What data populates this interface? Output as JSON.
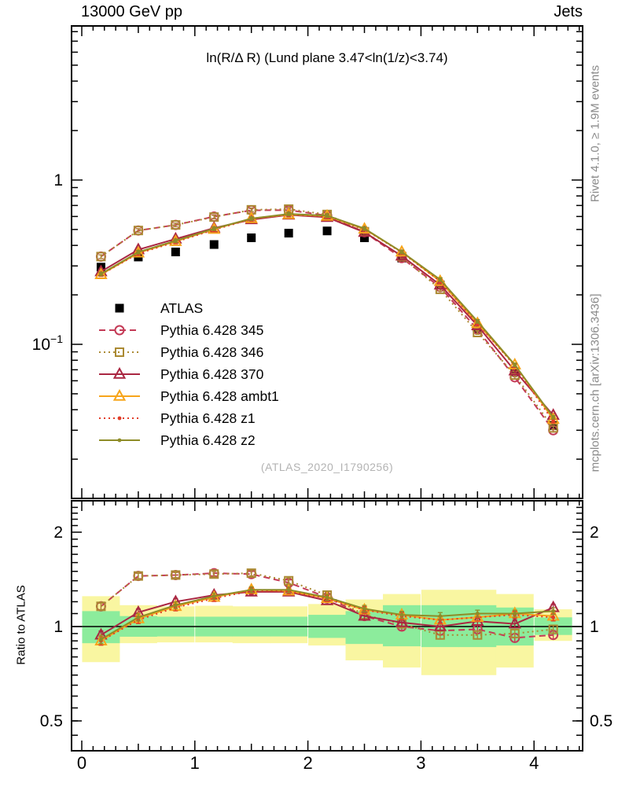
{
  "header": {
    "left": "13000 GeV pp",
    "right": "Jets"
  },
  "side_notes": {
    "top": "Rivet 4.1.0, ≥ 1.9M events",
    "bottom": "mcplots.cern.ch [arXiv:1306.3436]"
  },
  "watermark": "(ATLAS_2020_I1790256)",
  "chart_data": {
    "type": "line",
    "title": "ln(R/Δ R) (Lund plane 3.47<ln(1/z)<3.74)",
    "ratio_axis_label": "Ratio to ATLAS",
    "xlim": [
      -0.09,
      4.43
    ],
    "main_ylog": true,
    "main_ylim": [
      0.0115,
      8.67
    ],
    "ratio_ylog": true,
    "ratio_ylim": [
      0.4,
      2.52
    ],
    "x_bin_width": 0.3333,
    "x_ticks": [
      0,
      1,
      2,
      3,
      4
    ],
    "main_yticks": [
      {
        "v": 1,
        "base": "1",
        "exp": ""
      },
      {
        "v": 0.1,
        "base": "10",
        "exp": "−1"
      }
    ],
    "ratio_yticks": [
      {
        "v": 2,
        "label": "2"
      },
      {
        "v": 1,
        "label": "1"
      },
      {
        "v": 0.5,
        "label": "0.5"
      }
    ],
    "x": [
      0.17,
      0.5,
      0.83,
      1.17,
      1.5,
      1.83,
      2.17,
      2.5,
      2.83,
      3.17,
      3.5,
      3.83,
      4.17
    ],
    "reference": {
      "name": "ATLAS",
      "color": "#000000",
      "marker": "square-filled",
      "y": [
        0.295,
        0.34,
        0.365,
        0.405,
        0.445,
        0.475,
        0.49,
        0.445,
        0.335,
        0.23,
        0.125,
        0.068,
        0.032
      ]
    },
    "series": [
      {
        "key": "345",
        "name": "Pythia 6.428 345",
        "color": "#c43a56",
        "line": "dashed",
        "marker": "circle-open",
        "y": [
          0.342,
          0.493,
          0.533,
          0.599,
          0.654,
          0.656,
          0.608,
          0.481,
          0.335,
          0.223,
          0.123,
          0.063,
          0.03
        ],
        "ratio": [
          1.16,
          1.45,
          1.46,
          1.48,
          1.47,
          1.38,
          1.24,
          1.08,
          1.0,
          0.97,
          0.98,
          0.92,
          0.94
        ]
      },
      {
        "key": "346",
        "name": "Pythia 6.428 346",
        "color": "#ab8a33",
        "line": "dotted",
        "marker": "square-open",
        "y": [
          0.342,
          0.493,
          0.533,
          0.595,
          0.659,
          0.665,
          0.617,
          0.485,
          0.342,
          0.216,
          0.118,
          0.065,
          0.031
        ],
        "ratio": [
          1.16,
          1.45,
          1.46,
          1.47,
          1.48,
          1.4,
          1.26,
          1.09,
          1.02,
          0.94,
          0.94,
          0.95,
          0.98
        ]
      },
      {
        "key": "370",
        "name": "Pythia 6.428 370",
        "color": "#aa2742",
        "line": "solid",
        "marker": "triangle-open",
        "y": [
          0.277,
          0.377,
          0.438,
          0.51,
          0.574,
          0.613,
          0.593,
          0.481,
          0.345,
          0.23,
          0.13,
          0.069,
          0.037
        ],
        "ratio": [
          0.94,
          1.11,
          1.2,
          1.26,
          1.29,
          1.29,
          1.21,
          1.08,
          1.03,
          1.0,
          1.04,
          1.02,
          1.15
        ]
      },
      {
        "key": "ambt1",
        "name": "Pythia 6.428 ambt1",
        "color": "#f7a51b",
        "line": "solid",
        "marker": "triangle-open",
        "y": [
          0.266,
          0.36,
          0.423,
          0.502,
          0.583,
          0.618,
          0.603,
          0.503,
          0.365,
          0.242,
          0.134,
          0.075,
          0.035
        ],
        "ratio": [
          0.9,
          1.06,
          1.16,
          1.24,
          1.31,
          1.3,
          1.23,
          1.13,
          1.09,
          1.05,
          1.07,
          1.1,
          1.08
        ]
      },
      {
        "key": "z1",
        "name": "Pythia 6.428 z1",
        "color": "#e23d28",
        "line": "dotted",
        "marker": "dot",
        "y": [
          0.266,
          0.357,
          0.42,
          0.498,
          0.579,
          0.618,
          0.603,
          0.503,
          0.362,
          0.242,
          0.134,
          0.074,
          0.034
        ],
        "ratio": [
          0.9,
          1.05,
          1.15,
          1.23,
          1.3,
          1.3,
          1.23,
          1.13,
          1.08,
          1.05,
          1.07,
          1.09,
          1.07
        ]
      },
      {
        "key": "z2",
        "name": "Pythia 6.428 z2",
        "color": "#8e8c28",
        "line": "solid",
        "marker": "dot",
        "y": [
          0.268,
          0.364,
          0.427,
          0.506,
          0.583,
          0.622,
          0.608,
          0.507,
          0.365,
          0.248,
          0.138,
          0.075,
          0.036
        ],
        "ratio": [
          0.91,
          1.07,
          1.17,
          1.25,
          1.31,
          1.31,
          1.24,
          1.14,
          1.09,
          1.08,
          1.1,
          1.1,
          1.12
        ]
      }
    ],
    "bands": {
      "yellow": {
        "color": "#f9f6a1",
        "lo": [
          0.77,
          0.885,
          0.89,
          0.89,
          0.885,
          0.885,
          0.87,
          0.78,
          0.74,
          0.7,
          0.7,
          0.74,
          0.9
        ],
        "hi": [
          1.25,
          1.17,
          1.16,
          1.165,
          1.16,
          1.16,
          1.18,
          1.22,
          1.27,
          1.31,
          1.31,
          1.27,
          1.135
        ]
      },
      "green": {
        "color": "#8cec9c",
        "lo": [
          0.885,
          0.928,
          0.93,
          0.93,
          0.93,
          0.93,
          0.92,
          0.88,
          0.865,
          0.86,
          0.86,
          0.87,
          0.94
        ],
        "hi": [
          1.12,
          1.08,
          1.075,
          1.075,
          1.075,
          1.075,
          1.09,
          1.12,
          1.17,
          1.17,
          1.17,
          1.15,
          1.07
        ]
      }
    },
    "legend_position": "left-middle"
  }
}
